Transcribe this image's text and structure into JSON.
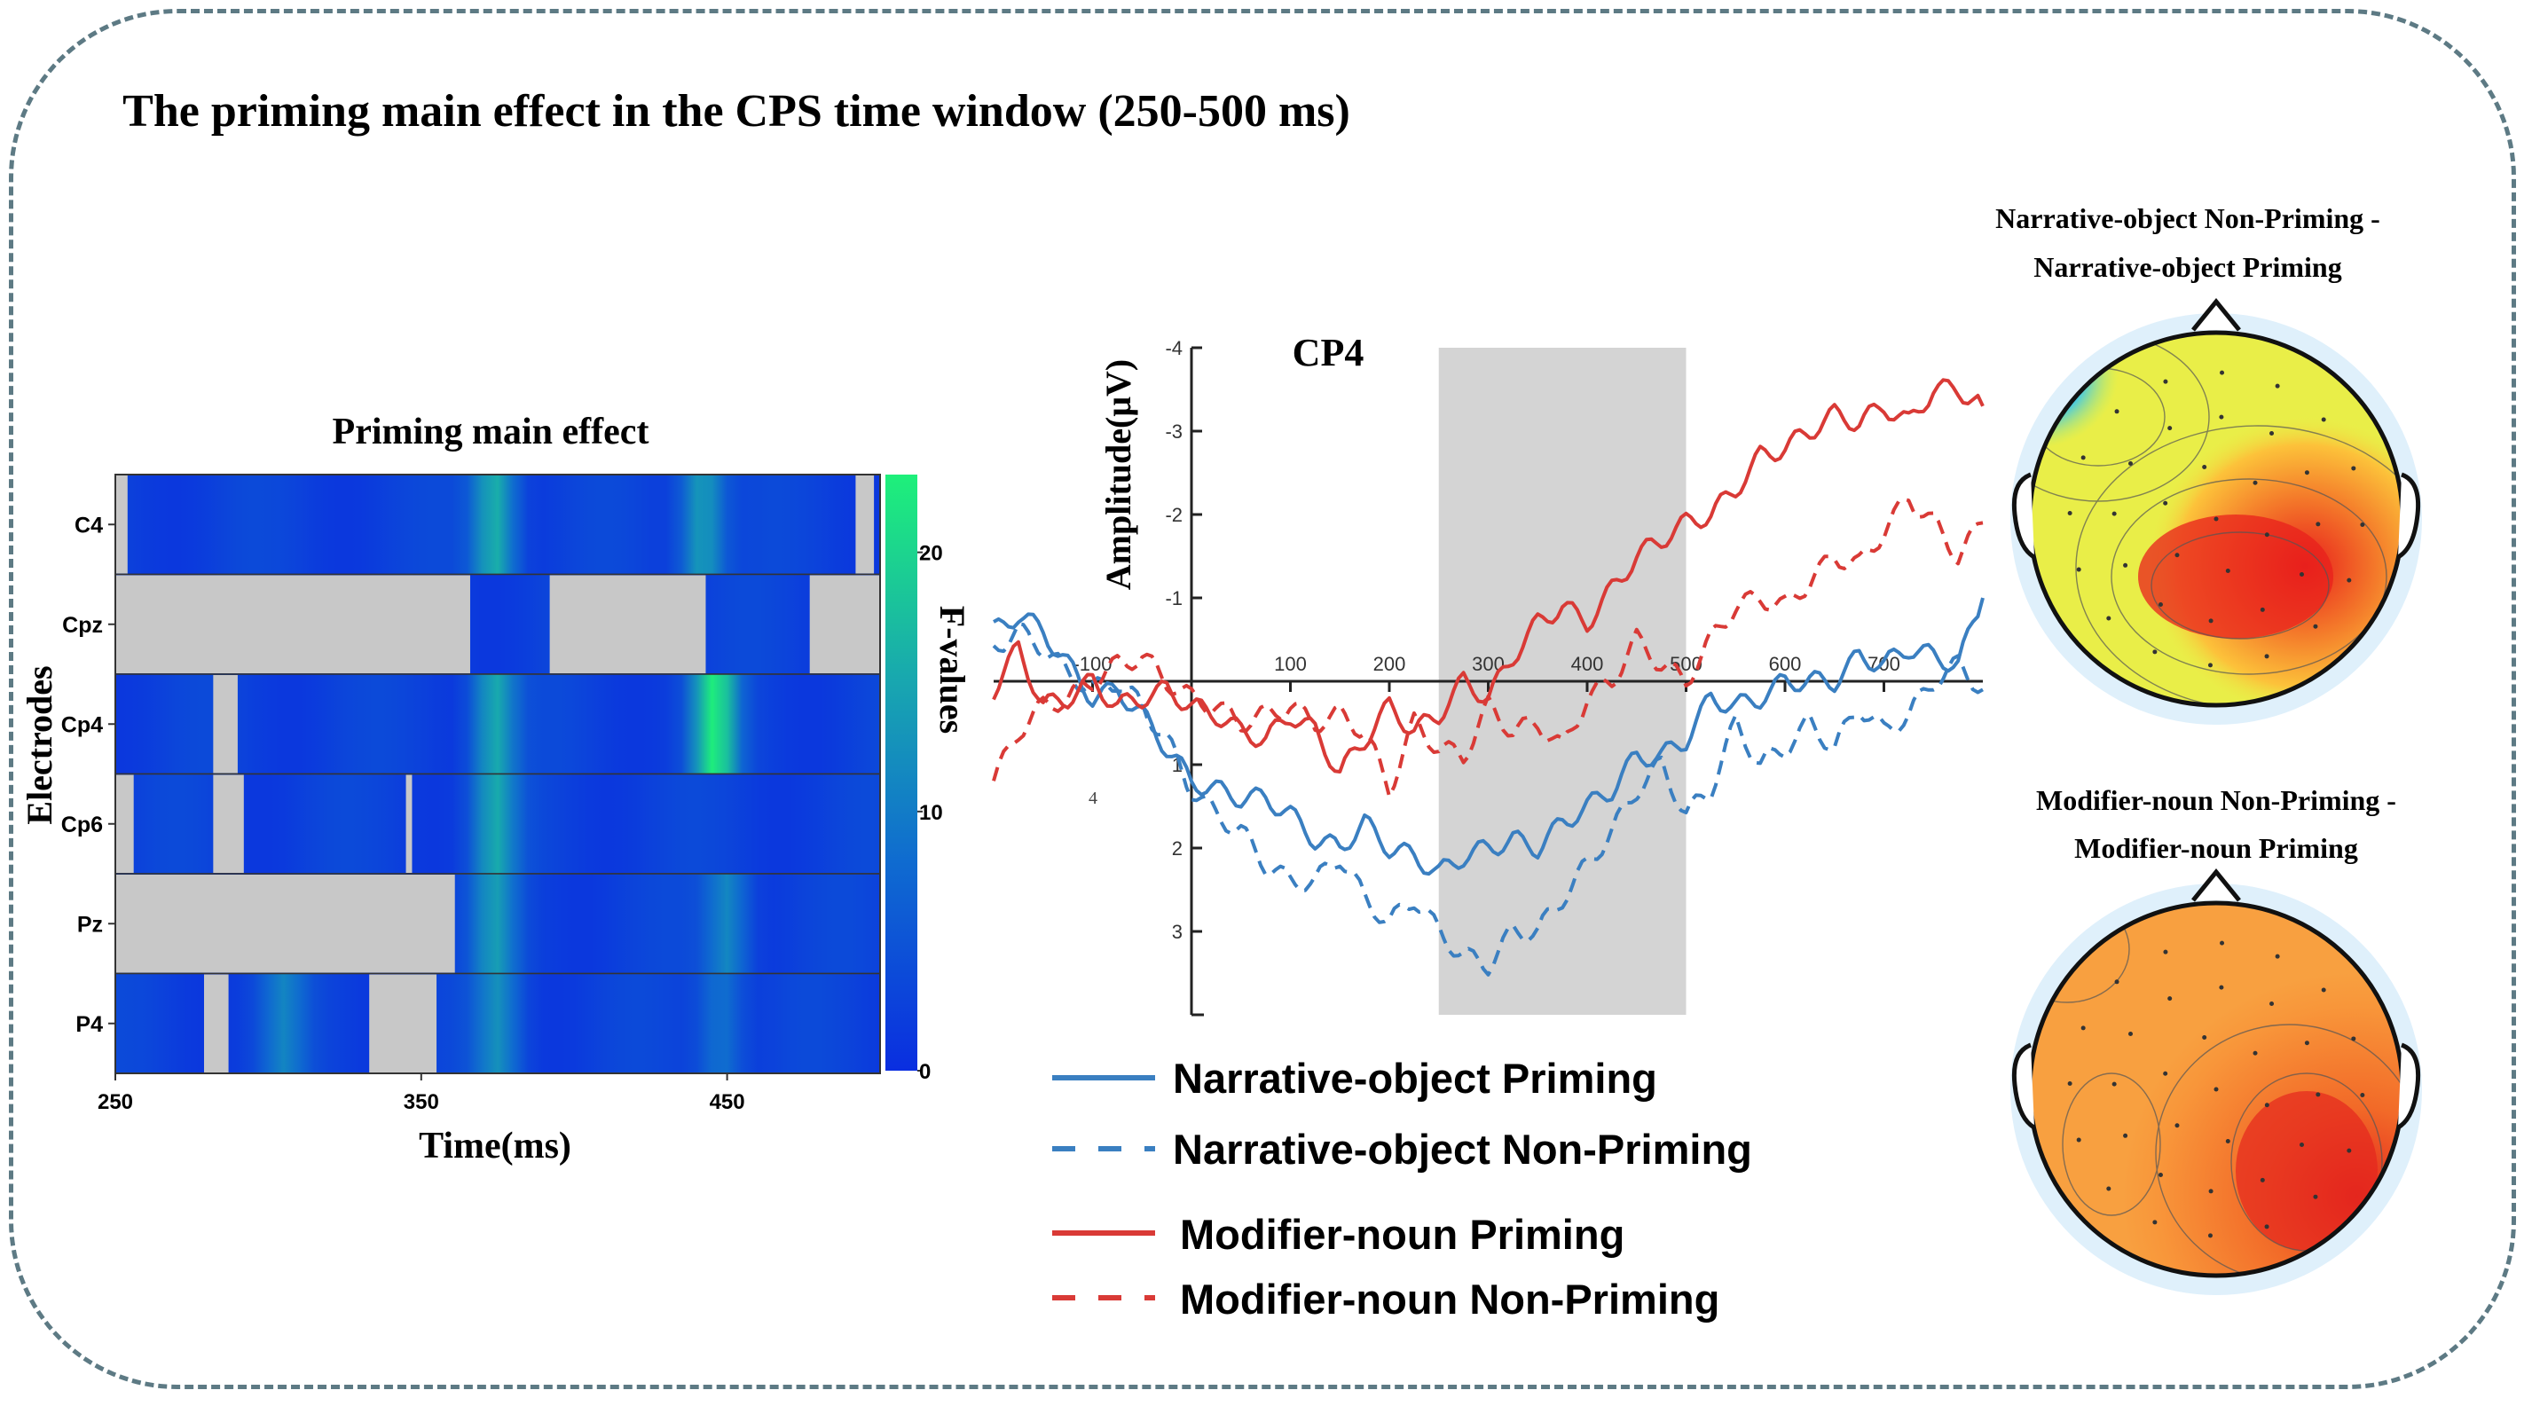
{
  "title": "The priming main effect in the CPS time window (250-500 ms)",
  "heatmap": {
    "title": "Priming main effect",
    "ylabel": "Electrodes",
    "xlabel": "Time(ms)",
    "colorbar_label": "F-values",
    "colorbar_ticks": [
      "0",
      "10",
      "20"
    ],
    "x_ticks": [
      "250",
      "350",
      "450"
    ],
    "electrodes": [
      "C4",
      "Cpz",
      "Cp4",
      "Cp6",
      "Pz",
      "P4"
    ]
  },
  "erp": {
    "title": "CP4",
    "ylabel": "Amplitude(μV)",
    "x_ticks": [
      "-100",
      "100",
      "200",
      "300",
      "400",
      "500",
      "600",
      "700"
    ],
    "y_ticks": [
      "-4",
      "-3",
      "-2",
      "-1",
      "1",
      "2",
      "3"
    ],
    "stray_label": "4",
    "legend": [
      "Narrative-object Priming",
      "Narrative-object Non-Priming",
      "Modifier-noun Priming",
      "Modifier-noun Non-Priming"
    ]
  },
  "topomaps": [
    {
      "title_line1": "Narrative-object Non-Priming -",
      "title_line2": "Narrative-object Priming"
    },
    {
      "title_line1": "Modifier-noun Non-Priming -",
      "title_line2": "Modifier-noun Priming"
    }
  ],
  "colors": {
    "narrative": "#3a7fc1",
    "modifier": "#d93a36",
    "frame": "#5d7a84",
    "shade": "#d4d4d4"
  },
  "chart_data": [
    {
      "type": "heatmap",
      "title": "Priming main effect",
      "xlabel": "Time(ms)",
      "ylabel": "Electrodes",
      "colorbar_label": "F-values",
      "color_range": [
        0,
        23
      ],
      "x_range": [
        250,
        500
      ],
      "rows": [
        "C4",
        "Cpz",
        "Cp4",
        "Cp6",
        "Pz",
        "P4"
      ],
      "nonsignificant_ms": {
        "C4": [
          [
            250,
            254
          ],
          [
            492,
            498
          ]
        ],
        "Cpz": [
          [
            250,
            366
          ],
          [
            392,
            443
          ],
          [
            477,
            500
          ]
        ],
        "Cp4": [
          [
            282,
            290
          ]
        ],
        "Cp6": [
          [
            250,
            256
          ],
          [
            282,
            292
          ],
          [
            345,
            347
          ]
        ],
        "Pz": [
          [
            250,
            361
          ]
        ],
        "P4": [
          [
            279,
            287
          ],
          [
            333,
            355
          ]
        ]
      },
      "peaks": [
        {
          "row": "C4",
          "time": 374,
          "f": 17
        },
        {
          "row": "C4",
          "time": 442,
          "f": 15
        },
        {
          "row": "Cp4",
          "time": 374,
          "f": 16
        },
        {
          "row": "Cp4",
          "time": 446,
          "f": 22
        },
        {
          "row": "Cp6",
          "time": 374,
          "f": 15
        },
        {
          "row": "Pz",
          "time": 374,
          "f": 13
        },
        {
          "row": "Pz",
          "time": 450,
          "f": 12
        },
        {
          "row": "P4",
          "time": 305,
          "f": 10
        },
        {
          "row": "P4",
          "time": 375,
          "f": 12
        },
        {
          "row": "P4",
          "time": 448,
          "f": 10
        }
      ]
    },
    {
      "type": "line",
      "title": "CP4",
      "ylabel": "Amplitude(μV)",
      "x_range": [
        -200,
        800
      ],
      "ylim": [
        4,
        -4
      ],
      "y_inverted": true,
      "shaded_window_ms": [
        250,
        500
      ],
      "x": [
        -200,
        -175,
        -150,
        -125,
        -100,
        -75,
        -50,
        -25,
        0,
        25,
        50,
        75,
        100,
        125,
        150,
        175,
        200,
        225,
        250,
        275,
        300,
        325,
        350,
        375,
        400,
        425,
        450,
        475,
        500,
        525,
        550,
        575,
        600,
        625,
        650,
        675,
        700,
        725,
        750,
        775,
        800
      ],
      "series": [
        {
          "name": "Narrative-object Priming",
          "style": "solid",
          "color": "#3a7fc1",
          "values": [
            -0.6,
            -0.8,
            -0.6,
            -0.2,
            0.2,
            0.1,
            0.4,
            0.8,
            1.2,
            1.3,
            1.4,
            1.4,
            1.6,
            1.9,
            2.0,
            1.7,
            2.0,
            2.1,
            2.3,
            2.1,
            2.0,
            1.9,
            2.0,
            1.7,
            1.5,
            1.3,
            0.9,
            0.9,
            0.7,
            0.2,
            0.3,
            0.2,
            0.0,
            0.0,
            0.0,
            -0.3,
            -0.2,
            -0.4,
            -0.3,
            -0.2,
            -1.0
          ]
        },
        {
          "name": "Narrative-object Non-Priming",
          "style": "dashed",
          "color": "#3a7fc1",
          "values": [
            -0.4,
            -0.6,
            -0.4,
            -0.1,
            0.1,
            0.0,
            0.3,
            0.7,
            1.3,
            1.6,
            1.8,
            2.2,
            2.4,
            2.4,
            2.1,
            2.6,
            2.9,
            2.6,
            3.0,
            3.3,
            3.4,
            3.0,
            3.0,
            2.6,
            2.2,
            1.8,
            1.3,
            1.0,
            1.6,
            1.3,
            0.5,
            1.0,
            0.8,
            0.5,
            0.8,
            0.3,
            0.6,
            0.4,
            0.0,
            -0.2,
            0.1
          ]
        },
        {
          "name": "Modifier-noun Priming",
          "style": "solid",
          "color": "#d93a36",
          "values": [
            0.1,
            -0.4,
            0.3,
            0.2,
            0.0,
            0.3,
            0.2,
            0.1,
            0.3,
            0.4,
            0.6,
            0.7,
            0.4,
            0.6,
            1.1,
            0.7,
            0.3,
            0.6,
            0.4,
            0.0,
            0.2,
            -0.3,
            -0.7,
            -0.9,
            -0.7,
            -1.1,
            -1.5,
            -1.7,
            -1.9,
            -2.0,
            -2.3,
            -2.7,
            -2.8,
            -3.0,
            -3.2,
            -3.1,
            -3.3,
            -3.1,
            -3.5,
            -3.5,
            -3.3
          ]
        },
        {
          "name": "Modifier-noun Non-Priming",
          "style": "dashed",
          "color": "#d93a36",
          "values": [
            1.2,
            0.6,
            0.3,
            0.2,
            0.0,
            -0.2,
            -0.3,
            0.0,
            0.2,
            0.3,
            0.5,
            0.4,
            0.3,
            0.5,
            0.4,
            0.6,
            1.3,
            0.5,
            0.8,
            0.9,
            0.3,
            0.6,
            0.5,
            0.8,
            0.2,
            0.0,
            -0.5,
            -0.2,
            0.0,
            -0.5,
            -0.9,
            -1.0,
            -0.9,
            -1.2,
            -1.5,
            -1.4,
            -1.8,
            -2.2,
            -1.9,
            -1.5,
            -1.9
          ]
        }
      ]
    }
  ]
}
